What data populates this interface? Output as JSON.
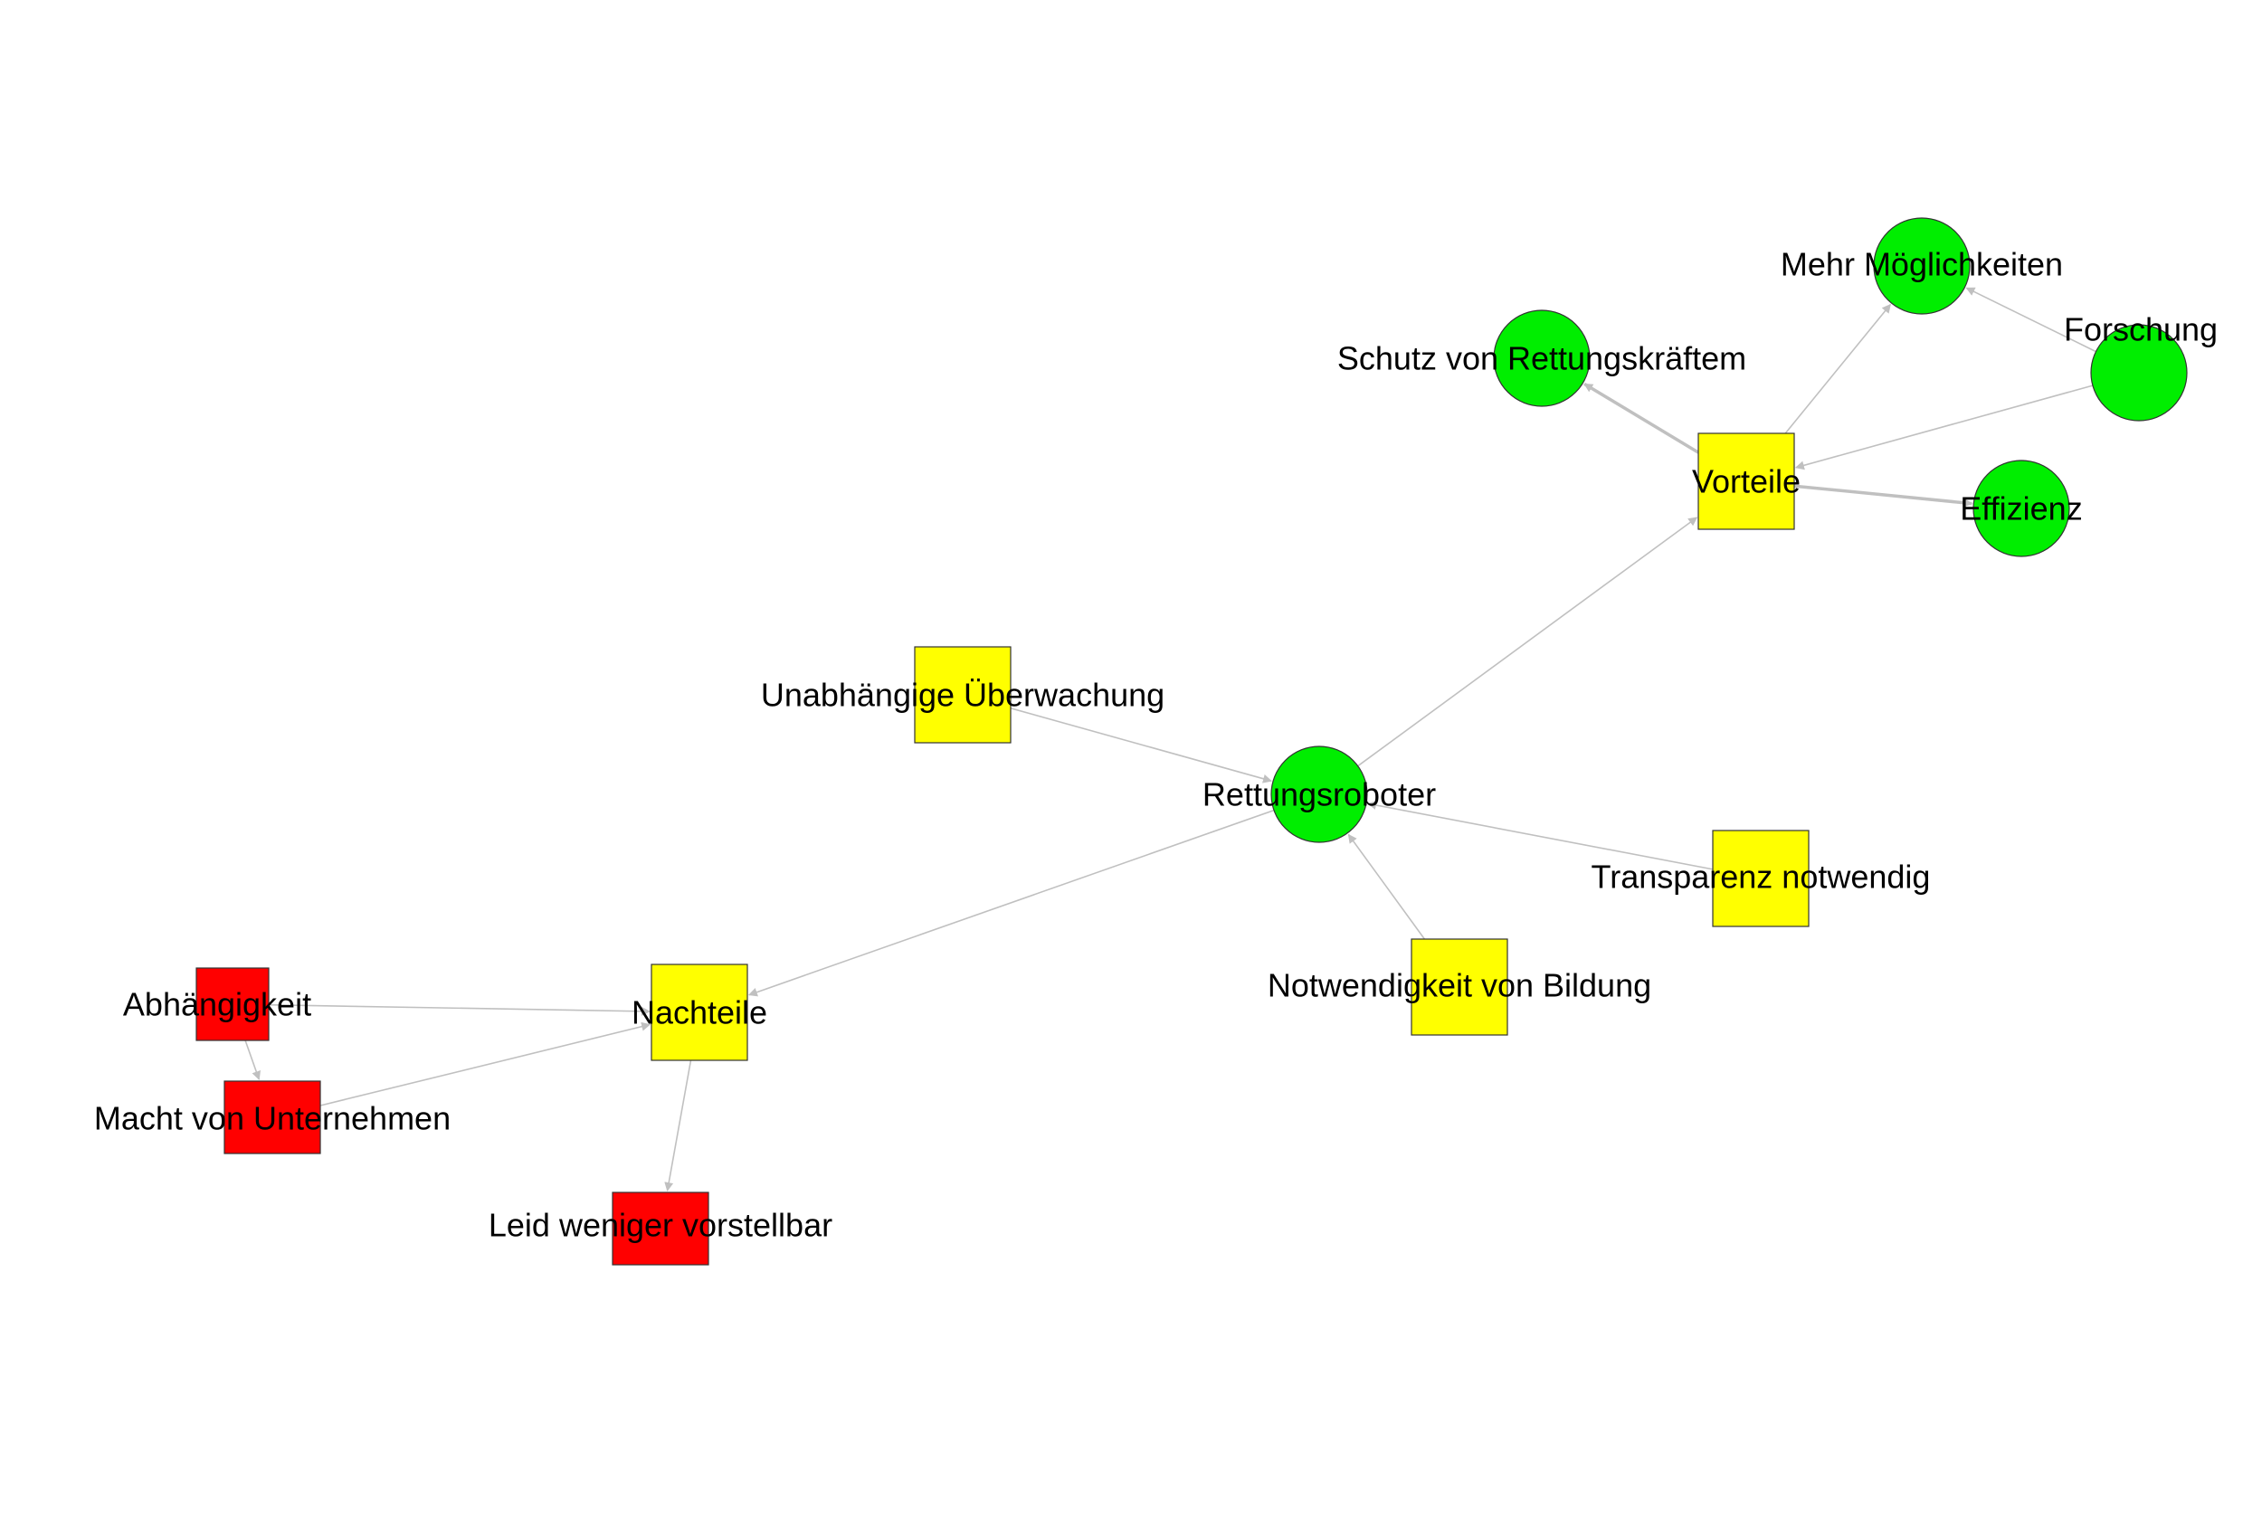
{
  "diagram": {
    "colors": {
      "positive": "#00ee00",
      "neutral": "#ffff00",
      "negative": "#ff0000",
      "edge": "#c0c0c0",
      "outline": "#333333"
    },
    "nodes": [
      {
        "id": "rettungsroboter",
        "label": "Rettungsroboter",
        "shape": "circle",
        "color": "positive"
      },
      {
        "id": "vorteile",
        "label": "Vorteile",
        "shape": "square",
        "color": "neutral"
      },
      {
        "id": "nachteile",
        "label": "Nachteile",
        "shape": "square",
        "color": "neutral"
      },
      {
        "id": "schutz",
        "label": "Schutz von Rettungskräftem",
        "shape": "circle",
        "color": "positive"
      },
      {
        "id": "moeglichkeiten",
        "label": "Mehr Möglichkeiten",
        "shape": "circle",
        "color": "positive"
      },
      {
        "id": "forschung",
        "label": "Forschung",
        "shape": "circle",
        "color": "positive"
      },
      {
        "id": "effizienz",
        "label": "Effizienz",
        "shape": "circle",
        "color": "positive"
      },
      {
        "id": "ueberwachung",
        "label": "Unabhängige Überwachung",
        "shape": "square",
        "color": "neutral"
      },
      {
        "id": "transparenz",
        "label": "Transparenz notwendig",
        "shape": "square",
        "color": "neutral"
      },
      {
        "id": "bildung",
        "label": "Notwendigkeit von Bildung",
        "shape": "square",
        "color": "neutral"
      },
      {
        "id": "abhaengigkeit",
        "label": "Abhängigkeit",
        "shape": "square",
        "color": "negative"
      },
      {
        "id": "macht",
        "label": "Macht von Unternehmen",
        "shape": "square",
        "color": "negative"
      },
      {
        "id": "leid",
        "label": "Leid weniger vorstellbar",
        "shape": "square",
        "color": "negative"
      }
    ],
    "edges": [
      {
        "from": "rettungsroboter",
        "to": "vorteile",
        "weight": 1
      },
      {
        "from": "rettungsroboter",
        "to": "nachteile",
        "weight": 1
      },
      {
        "from": "ueberwachung",
        "to": "rettungsroboter",
        "weight": 1
      },
      {
        "from": "transparenz",
        "to": "rettungsroboter",
        "weight": 1
      },
      {
        "from": "bildung",
        "to": "rettungsroboter",
        "weight": 1
      },
      {
        "from": "vorteile",
        "to": "schutz",
        "weight": 2
      },
      {
        "from": "vorteile",
        "to": "moeglichkeiten",
        "weight": 1
      },
      {
        "from": "vorteile",
        "to": "effizienz",
        "weight": 2
      },
      {
        "from": "forschung",
        "to": "vorteile",
        "weight": 1
      },
      {
        "from": "forschung",
        "to": "moeglichkeiten",
        "weight": 1
      },
      {
        "from": "abhaengigkeit",
        "to": "nachteile",
        "weight": 1
      },
      {
        "from": "abhaengigkeit",
        "to": "macht",
        "weight": 1
      },
      {
        "from": "macht",
        "to": "nachteile",
        "weight": 1
      },
      {
        "from": "nachteile",
        "to": "leid",
        "weight": 1
      }
    ]
  }
}
